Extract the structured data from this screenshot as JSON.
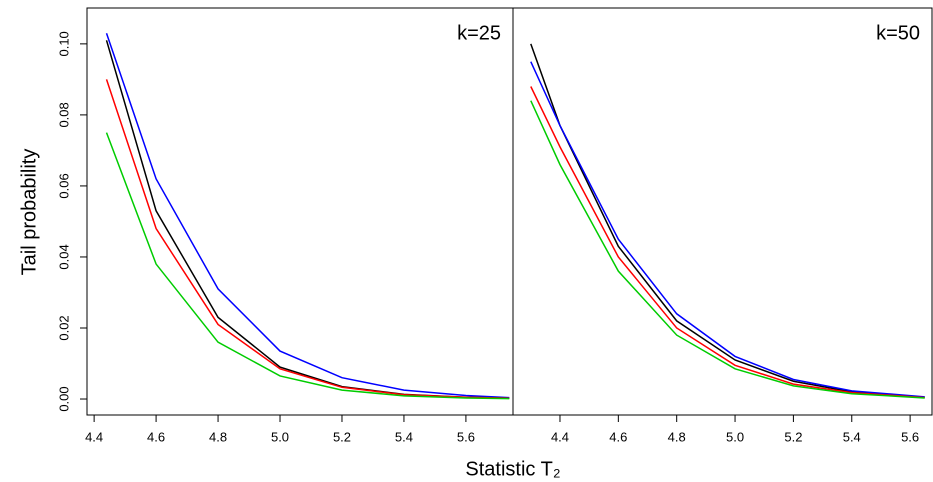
{
  "chart_data": [
    {
      "type": "line",
      "annotation": "k=25",
      "ylabel": "Tail probability",
      "xlabel": "Statistic T₂",
      "x": [
        4.44,
        4.6,
        4.8,
        5.0,
        5.2,
        5.4,
        5.6,
        5.74
      ],
      "series": [
        {
          "color": "#0000ff",
          "values": [
            0.103,
            0.062,
            0.031,
            0.0135,
            0.006,
            0.0025,
            0.001,
            0.0004
          ]
        },
        {
          "color": "#000000",
          "values": [
            0.101,
            0.053,
            0.023,
            0.009,
            0.0035,
            0.0013,
            0.0005,
            0.0002
          ]
        },
        {
          "color": "#ff0000",
          "values": [
            0.09,
            0.048,
            0.021,
            0.0085,
            0.0033,
            0.0012,
            0.0005,
            0.0002
          ]
        },
        {
          "color": "#00cc00",
          "values": [
            0.075,
            0.038,
            0.016,
            0.0065,
            0.0025,
            0.0009,
            0.0003,
            0.0001
          ]
        }
      ],
      "xlim": [
        4.377,
        5.752
      ],
      "ylim": [
        -0.0045,
        0.1101
      ],
      "xticks": [
        4.4,
        4.6,
        4.8,
        {
          "value": 5,
          "label": "5.0"
        },
        5.2,
        5.4,
        5.6
      ],
      "yticks": [
        {
          "value": 0,
          "label": "0.00"
        },
        {
          "value": 0.02,
          "label": "0.02"
        },
        {
          "value": 0.04,
          "label": "0.04"
        },
        {
          "value": 0.06,
          "label": "0.06"
        },
        {
          "value": 0.08,
          "label": "0.08"
        },
        {
          "value": 0.1,
          "label": "0.10"
        }
      ]
    },
    {
      "type": "line",
      "annotation": "k=50",
      "x": [
        4.3,
        4.4,
        4.6,
        4.8,
        5.0,
        5.2,
        5.4,
        5.65
      ],
      "series": [
        {
          "color": "#000000",
          "values": [
            0.1,
            0.077,
            0.043,
            0.022,
            0.011,
            0.005,
            0.002,
            0.0005
          ]
        },
        {
          "color": "#0000ff",
          "values": [
            0.095,
            0.077,
            0.045,
            0.024,
            0.012,
            0.0055,
            0.0023,
            0.0006
          ]
        },
        {
          "color": "#ff0000",
          "values": [
            0.088,
            0.071,
            0.04,
            0.02,
            0.0095,
            0.0042,
            0.0018,
            0.0004
          ]
        },
        {
          "color": "#00cc00",
          "values": [
            0.084,
            0.066,
            0.036,
            0.018,
            0.0085,
            0.0037,
            0.0015,
            0.0003
          ]
        }
      ],
      "xlim": [
        4.239,
        5.675
      ],
      "ylim": [
        -0.0045,
        0.1101
      ],
      "xticks": [
        4.4,
        4.6,
        4.8,
        {
          "value": 5,
          "label": "5.0"
        },
        5.2,
        5.4,
        5.6
      ]
    }
  ]
}
